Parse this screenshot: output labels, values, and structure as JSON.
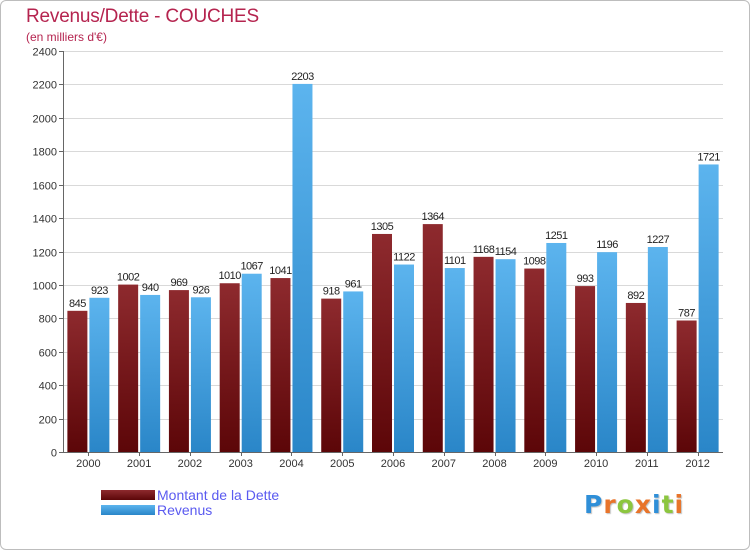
{
  "title": "Revenus/Dette - COUCHES",
  "subtitle": "(en milliers d'€)",
  "legend": [
    {
      "label": "Montant de la Dette",
      "color": "#7a1418"
    },
    {
      "label": "Revenus",
      "color": "#4ea8e6"
    }
  ],
  "logo": {
    "text": "Proxiti",
    "letters": [
      "P",
      "r",
      "o",
      "x",
      "i",
      "t",
      "i"
    ],
    "colors": [
      "#2f8fd8",
      "#e8742a",
      "#8cc63f",
      "#e8742a",
      "#2f8fd8",
      "#8cc63f",
      "#e8742a"
    ]
  },
  "colors": {
    "title": "#b5244f",
    "debt": "#7a1418",
    "revenue": "#4ea8e6",
    "grid": "#d9d9d9",
    "axis": "#666666"
  },
  "chart_data": {
    "type": "bar",
    "title": "Revenus/Dette - COUCHES",
    "ylabel": "(en milliers d'€)",
    "xlabel": "",
    "categories": [
      "2000",
      "2001",
      "2002",
      "2003",
      "2004",
      "2005",
      "2006",
      "2007",
      "2008",
      "2009",
      "2010",
      "2011",
      "2012"
    ],
    "series": [
      {
        "name": "Montant de la Dette",
        "values": [
          845,
          1002,
          969,
          1010,
          1041,
          918,
          1305,
          1364,
          1168,
          1098,
          993,
          892,
          787
        ]
      },
      {
        "name": "Revenus",
        "values": [
          923,
          940,
          926,
          1067,
          2203,
          961,
          1122,
          1101,
          1154,
          1251,
          1196,
          1227,
          1721
        ]
      }
    ],
    "yticks": [
      0,
      200,
      400,
      600,
      800,
      1000,
      1200,
      1400,
      1600,
      1800,
      2000,
      2200,
      2400
    ],
    "ylim": [
      0,
      2400
    ],
    "grid": true,
    "legend_position": "bottom-left"
  }
}
